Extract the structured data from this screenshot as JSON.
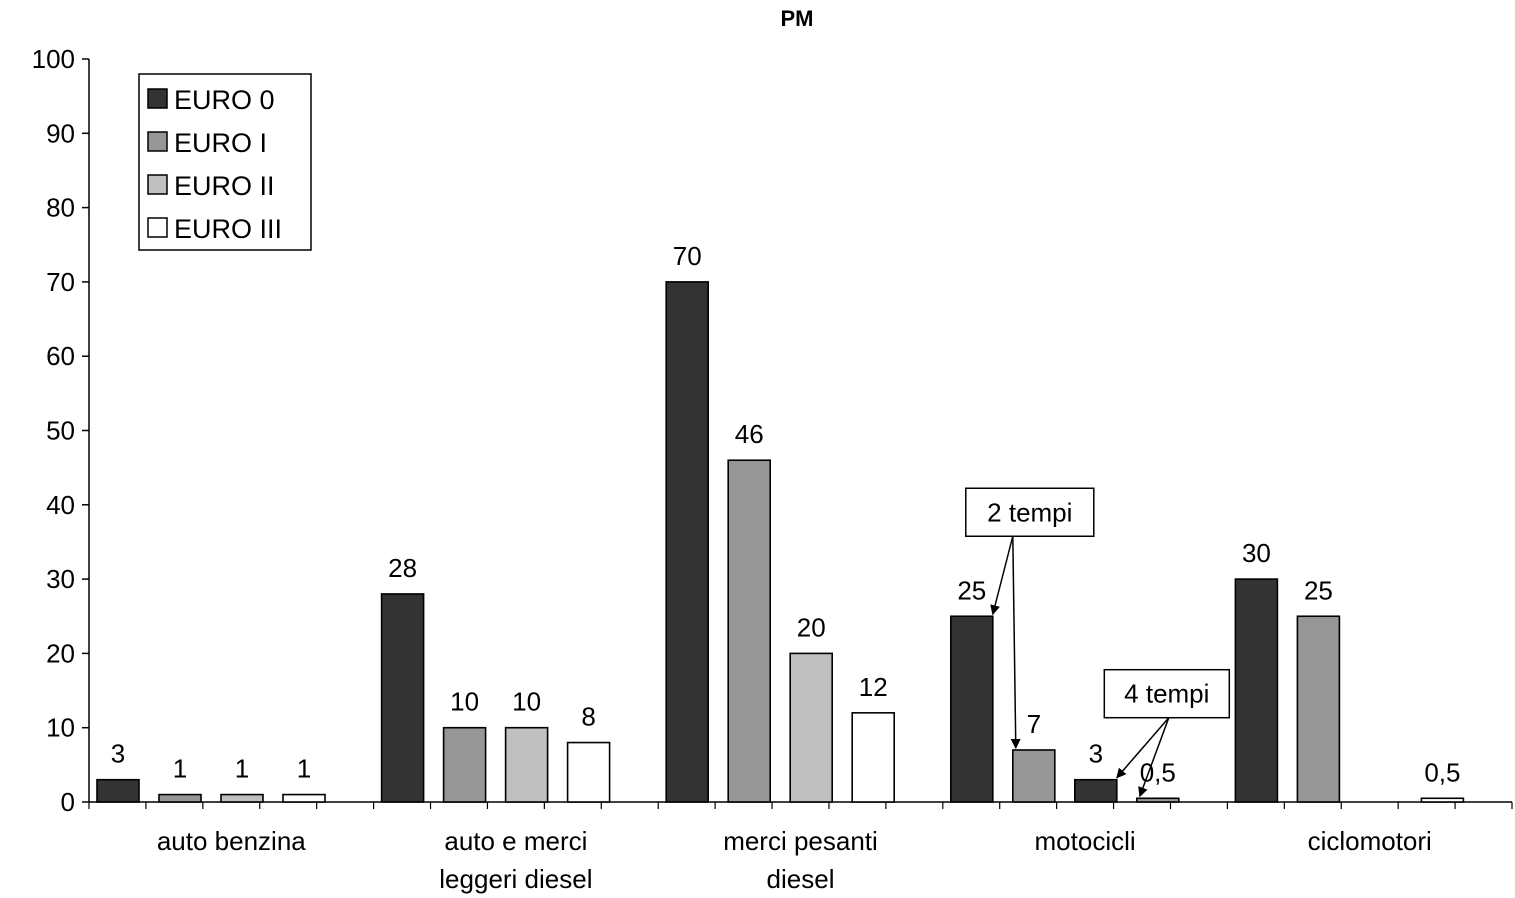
{
  "chart_data": {
    "type": "bar",
    "title": "PM",
    "xlabel": "",
    "ylabel": "",
    "ylim": [
      0,
      100
    ],
    "yticks": [
      "0",
      "10",
      "20",
      "30",
      "40",
      "50",
      "60",
      "70",
      "80",
      "90",
      "100"
    ],
    "categories": [
      [
        "auto benzina"
      ],
      [
        "auto e merci",
        "leggeri diesel"
      ],
      [
        "merci pesanti",
        "diesel"
      ],
      [
        "motocicli"
      ],
      [
        "ciclomotori"
      ]
    ],
    "series": [
      {
        "name": "EURO 0",
        "color": "#333333",
        "values": [
          3,
          28,
          70,
          25,
          30
        ],
        "labels": [
          "3",
          "28",
          "70",
          "25",
          "30"
        ]
      },
      {
        "name": "EURO I",
        "color": "#969696",
        "values": [
          1,
          10,
          46,
          7,
          25
        ],
        "labels": [
          "1",
          "10",
          "46",
          "7",
          "25"
        ]
      },
      {
        "name": "EURO II",
        "color": "#c0c0c0",
        "values": [
          1,
          10,
          20,
          3,
          null
        ],
        "labels": [
          "1",
          "10",
          "20",
          "3",
          ""
        ]
      },
      {
        "name": "EURO III",
        "color": "#ffffff",
        "values": [
          1,
          8,
          12,
          0.5,
          0.5
        ],
        "labels": [
          "1",
          "8",
          "12",
          "0,5",
          "0,5"
        ]
      }
    ],
    "motocicli_bar_colors": [
      "#333333",
      "#969696",
      "#333333",
      "#969696"
    ],
    "annotations": [
      {
        "text": "2 tempi",
        "category": "motocicli",
        "points_to": [
          "EURO 0",
          "EURO I"
        ]
      },
      {
        "text": "4 tempi",
        "category": "motocicli",
        "points_to": [
          "EURO II",
          "EURO III"
        ]
      }
    ],
    "legend_position": "top-left",
    "grid": false
  }
}
